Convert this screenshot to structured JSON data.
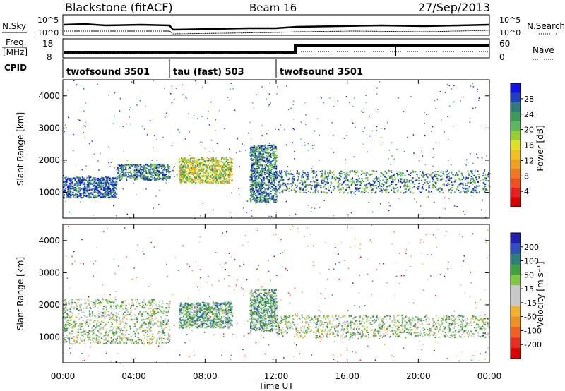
{
  "header": {
    "station": "Blackstone (fitACF)",
    "beam": "Beam 16",
    "date": "27/Sep/2013"
  },
  "params_panel": {
    "nsky_label": "N.Sky",
    "nsearch_label": "N.Search",
    "noise_ticks": [
      "10^5",
      "10^0"
    ],
    "freq_label": "Freq.",
    "freq_unit": "[MHz]",
    "freq_ticks": [
      "18",
      "8"
    ],
    "nave_label": "Nave",
    "nave_ticks": [
      "60",
      "0"
    ],
    "cpid_label": "CPID"
  },
  "cpid_segments": [
    {
      "name": "twofsound 3501",
      "start_hour": 0,
      "end_hour": 6
    },
    {
      "name": "tau (fast) 503",
      "start_hour": 6,
      "end_hour": 12
    },
    {
      "name": "twofsound 3501",
      "start_hour": 12,
      "end_hour": 24
    }
  ],
  "axes": {
    "ylabel": "Slant Range [km]",
    "y_ticks": [
      "4000",
      "3000",
      "2000",
      "1000"
    ],
    "xlabel": "Time UT",
    "x_ticks": [
      "00:00",
      "04:00",
      "08:00",
      "12:00",
      "16:00",
      "20:00",
      "00:00"
    ]
  },
  "power_colorbar": {
    "label": "Power [dB]",
    "ticks": [
      "28",
      "24",
      "20",
      "16",
      "12",
      "8",
      "4"
    ],
    "colors": [
      "#1010ee",
      "#2040c0",
      "#2e7d7d",
      "#3a9a5a",
      "#5cb85c",
      "#9acd32",
      "#e0e020",
      "#f0c020",
      "#f0a020",
      "#f07820",
      "#f05020",
      "#e82020",
      "#dd0000"
    ]
  },
  "velocity_colorbar": {
    "label": "Velocity [m s⁻¹]",
    "ticks": [
      "200",
      "100",
      "50",
      "15",
      "-15",
      "-50",
      "-100",
      "-200"
    ],
    "colors": [
      "#2020b0",
      "#3050c0",
      "#2e8080",
      "#40a040",
      "#80c840",
      "#c8c8c8",
      "#c8c8c8",
      "#f0b030",
      "#f09020",
      "#f06020",
      "#e83020",
      "#dd0000"
    ]
  },
  "chart_data": [
    {
      "type": "heatmap",
      "title": "Blackstone (fitACF)  Beam 16  27/Sep/2013",
      "xlabel": "Time UT",
      "ylabel": "Slant Range [km]",
      "xlim": [
        0,
        24
      ],
      "ylim": [
        200,
        4500
      ],
      "value_label": "Power [dB]",
      "value_range": [
        0,
        30
      ],
      "features": [
        {
          "t0": 0,
          "t1": 3,
          "r0": 850,
          "r1": 1500,
          "power_db": 24
        },
        {
          "t0": 3,
          "t1": 6,
          "r0": 1400,
          "r1": 1900,
          "power_db": 22
        },
        {
          "t0": 6.5,
          "t1": 9.5,
          "r0": 1300,
          "r1": 2100,
          "power_db": 16
        },
        {
          "t0": 10.5,
          "t1": 12,
          "r0": 700,
          "r1": 2500,
          "power_db": 22
        },
        {
          "t0": 12,
          "t1": 24,
          "r0": 1000,
          "r1": 1700,
          "power_db": 22
        }
      ]
    },
    {
      "type": "heatmap",
      "xlabel": "Time UT",
      "ylabel": "Slant Range [km]",
      "xlim": [
        0,
        24
      ],
      "ylim": [
        200,
        4500
      ],
      "value_label": "Velocity [m s⁻¹]",
      "value_range": [
        -200,
        200
      ],
      "features": [
        {
          "t0": 0,
          "t1": 6,
          "r0": 800,
          "r1": 2200,
          "velocity": 0
        },
        {
          "t0": 6.5,
          "t1": 9.5,
          "r0": 1300,
          "r1": 2100,
          "velocity": 40
        },
        {
          "t0": 10.5,
          "t1": 12,
          "r0": 1200,
          "r1": 2500,
          "velocity": 40
        },
        {
          "t0": 12,
          "t1": 24,
          "r0": 1000,
          "r1": 1700,
          "velocity": 0
        }
      ]
    }
  ]
}
